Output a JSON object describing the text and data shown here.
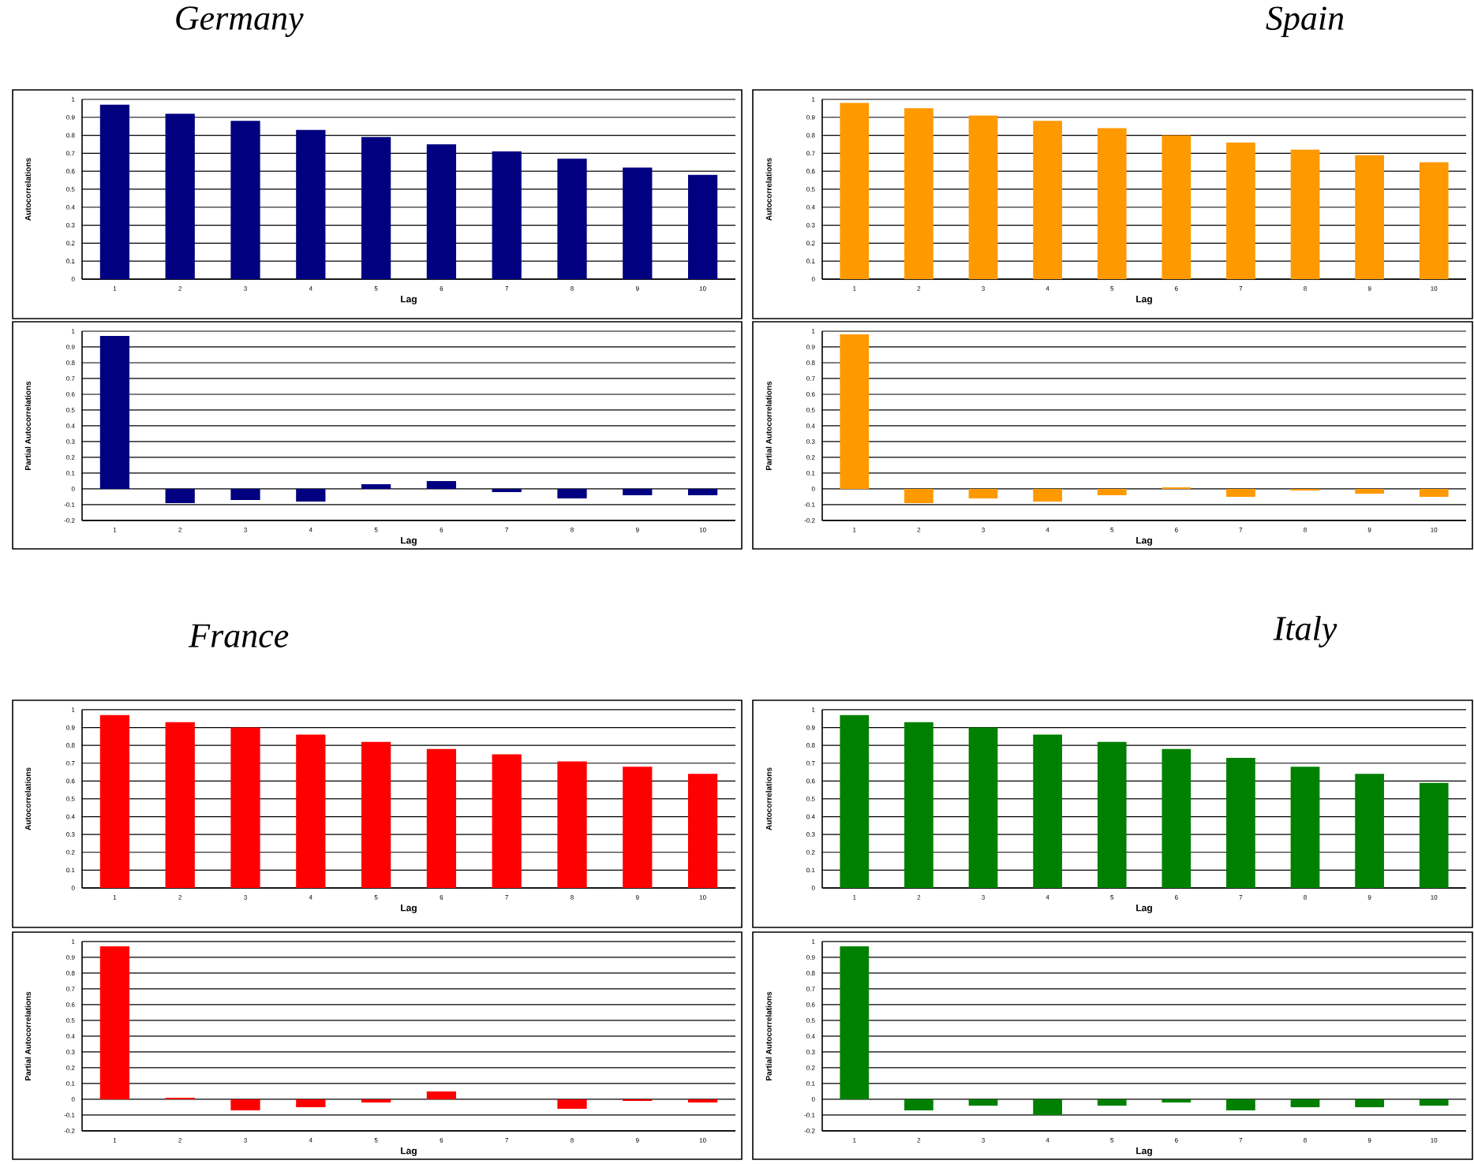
{
  "chart_data": [
    {
      "type": "bar",
      "title": "Germany",
      "categories": [
        "1",
        "2",
        "3",
        "4",
        "5",
        "6",
        "7",
        "8",
        "9",
        "10"
      ],
      "values": [
        0.97,
        0.92,
        0.88,
        0.83,
        0.79,
        0.75,
        0.71,
        0.67,
        0.62,
        0.58
      ],
      "color": "#000080",
      "ylim": [
        0,
        1
      ],
      "yticks": [
        0,
        0.1,
        0.2,
        0.3,
        0.4,
        0.5,
        0.6,
        0.7,
        0.8,
        0.9,
        1
      ],
      "xlabel": "Lag",
      "ylabel": "Autocorrelations",
      "grid": "y"
    },
    {
      "type": "bar",
      "title": "Spain",
      "categories": [
        "1",
        "2",
        "3",
        "4",
        "5",
        "6",
        "7",
        "8",
        "9",
        "10"
      ],
      "values": [
        0.98,
        0.95,
        0.91,
        0.88,
        0.84,
        0.8,
        0.76,
        0.72,
        0.69,
        0.65
      ],
      "color": "#ff9900",
      "ylim": [
        0,
        1
      ],
      "yticks": [
        0,
        0.1,
        0.2,
        0.3,
        0.4,
        0.5,
        0.6,
        0.7,
        0.8,
        0.9,
        1
      ],
      "xlabel": "Lag",
      "ylabel": "Autocorrelations",
      "grid": "y"
    },
    {
      "type": "bar",
      "categories": [
        "1",
        "2",
        "3",
        "4",
        "5",
        "6",
        "7",
        "8",
        "9",
        "10"
      ],
      "values": [
        0.97,
        -0.09,
        -0.07,
        -0.08,
        0.03,
        0.05,
        -0.02,
        -0.06,
        -0.04,
        -0.04
      ],
      "color": "#000080",
      "ylim": [
        -0.2,
        1
      ],
      "yticks": [
        -0.2,
        -0.1,
        0,
        0.1,
        0.2,
        0.3,
        0.4,
        0.5,
        0.6,
        0.7,
        0.8,
        0.9,
        1
      ],
      "xlabel": "Lag",
      "ylabel": "Partial Autocorrelations",
      "grid": "y"
    },
    {
      "type": "bar",
      "categories": [
        "1",
        "2",
        "3",
        "4",
        "5",
        "6",
        "7",
        "8",
        "9",
        "10"
      ],
      "values": [
        0.98,
        -0.09,
        -0.06,
        -0.08,
        -0.04,
        0.01,
        -0.05,
        -0.01,
        -0.03,
        -0.05
      ],
      "color": "#ff9900",
      "ylim": [
        -0.2,
        1
      ],
      "yticks": [
        -0.2,
        -0.1,
        0,
        0.1,
        0.2,
        0.3,
        0.4,
        0.5,
        0.6,
        0.7,
        0.8,
        0.9,
        1
      ],
      "xlabel": "Lag",
      "ylabel": "Partial Autocorrelations",
      "grid": "y"
    },
    {
      "type": "bar",
      "title": "France",
      "categories": [
        "1",
        "2",
        "3",
        "4",
        "5",
        "6",
        "7",
        "8",
        "9",
        "10"
      ],
      "values": [
        0.97,
        0.93,
        0.9,
        0.86,
        0.82,
        0.78,
        0.75,
        0.71,
        0.68,
        0.64
      ],
      "color": "#ff0000",
      "ylim": [
        0,
        1
      ],
      "yticks": [
        0,
        0.1,
        0.2,
        0.3,
        0.4,
        0.5,
        0.6,
        0.7,
        0.8,
        0.9,
        1
      ],
      "xlabel": "Lag",
      "ylabel": "Autocorrelations",
      "grid": "y"
    },
    {
      "type": "bar",
      "title": "Italy",
      "categories": [
        "1",
        "2",
        "3",
        "4",
        "5",
        "6",
        "7",
        "8",
        "9",
        "10"
      ],
      "values": [
        0.97,
        0.93,
        0.9,
        0.86,
        0.82,
        0.78,
        0.73,
        0.68,
        0.64,
        0.59
      ],
      "color": "#008000",
      "ylim": [
        0,
        1
      ],
      "yticks": [
        0,
        0.1,
        0.2,
        0.3,
        0.4,
        0.5,
        0.6,
        0.7,
        0.8,
        0.9,
        1
      ],
      "xlabel": "Lag",
      "ylabel": "Autocorrelations",
      "grid": "y"
    },
    {
      "type": "bar",
      "categories": [
        "1",
        "2",
        "3",
        "4",
        "5",
        "6",
        "7",
        "8",
        "9",
        "10"
      ],
      "values": [
        0.97,
        0.01,
        -0.07,
        -0.05,
        -0.02,
        0.05,
        0,
        -0.06,
        -0.01,
        -0.02
      ],
      "color": "#ff0000",
      "ylim": [
        -0.2,
        1
      ],
      "yticks": [
        -0.2,
        -0.1,
        0,
        0.1,
        0.2,
        0.3,
        0.4,
        0.5,
        0.6,
        0.7,
        0.8,
        0.9,
        1
      ],
      "xlabel": "Lag",
      "ylabel": "Partial Autocorrelations",
      "grid": "y"
    },
    {
      "type": "bar",
      "categories": [
        "1",
        "2",
        "3",
        "4",
        "5",
        "6",
        "7",
        "8",
        "9",
        "10"
      ],
      "values": [
        0.97,
        -0.07,
        -0.04,
        -0.1,
        -0.04,
        -0.02,
        -0.07,
        -0.05,
        -0.05,
        -0.04
      ],
      "color": "#008000",
      "ylim": [
        -0.2,
        1
      ],
      "yticks": [
        -0.2,
        -0.1,
        0,
        0.1,
        0.2,
        0.3,
        0.4,
        0.5,
        0.6,
        0.7,
        0.8,
        0.9,
        1
      ],
      "xlabel": "Lag",
      "ylabel": "Partial Autocorrelations",
      "grid": "y"
    }
  ]
}
